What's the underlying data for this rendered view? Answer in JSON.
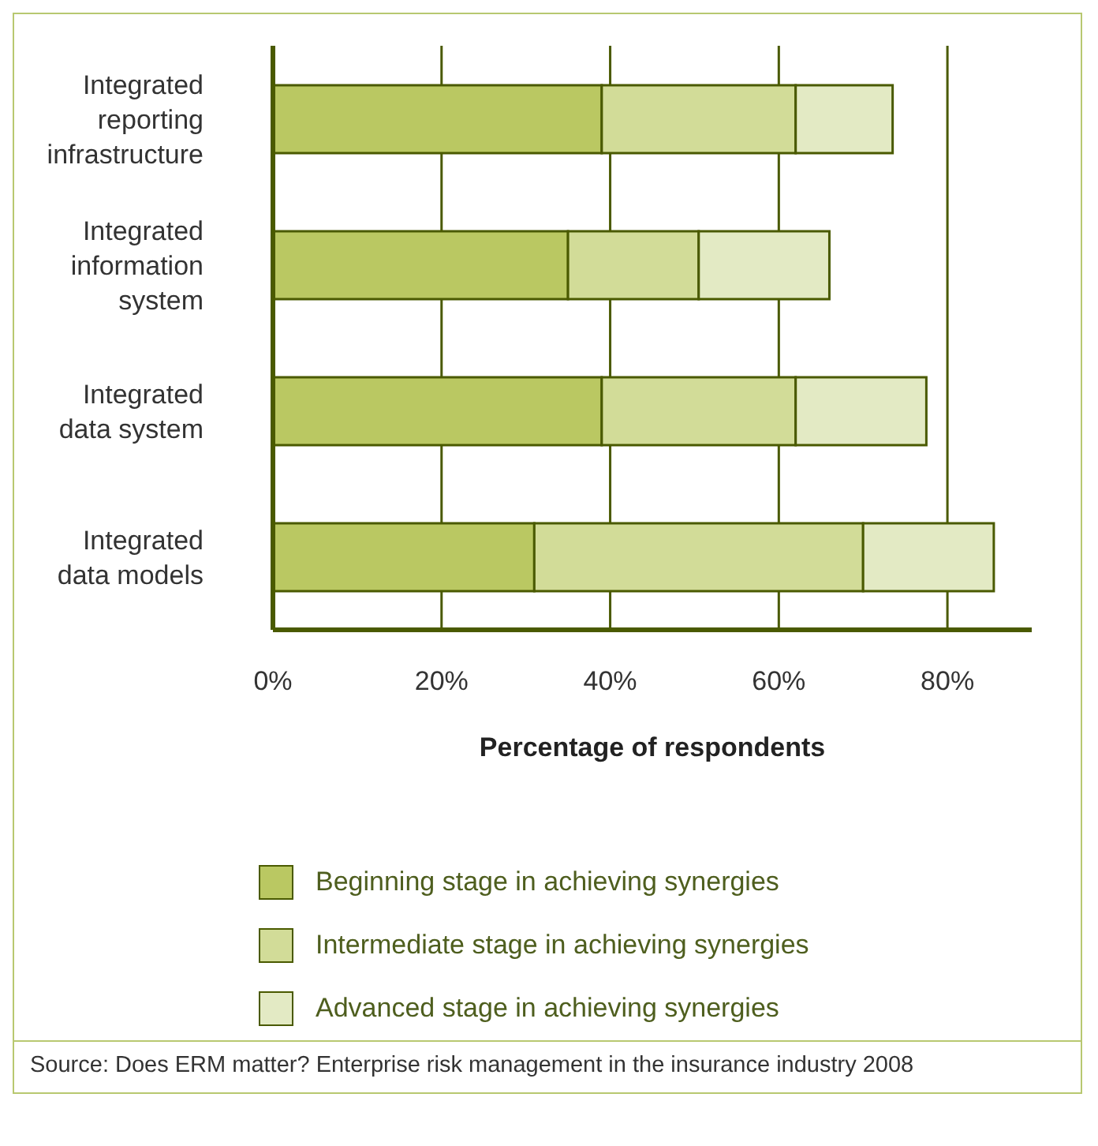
{
  "chart_data": {
    "type": "bar",
    "orientation": "horizontal",
    "stacked": true,
    "categories": [
      "Integrated reporting infrastructure",
      "Integrated information system",
      "Integrated data system",
      "Integrated data models"
    ],
    "series": [
      {
        "name": "Beginning stage in achieving synergies",
        "color": "#bac862",
        "values": [
          39,
          35,
          39,
          31
        ]
      },
      {
        "name": "Intermediate stage in achieving synergies",
        "color": "#d2dc98",
        "values": [
          23,
          15.5,
          23,
          39
        ]
      },
      {
        "name": "Advanced stage in achieving synergies",
        "color": "#e3eac4",
        "values": [
          11.5,
          15.5,
          15.5,
          15.5
        ]
      }
    ],
    "xlim": [
      0,
      90
    ],
    "xticks": [
      {
        "value": 0,
        "label": "0%"
      },
      {
        "value": 20,
        "label": "20%"
      },
      {
        "value": 40,
        "label": "40%"
      },
      {
        "value": 60,
        "label": "60%"
      },
      {
        "value": 80,
        "label": "80%"
      }
    ],
    "xlabel": "Percentage of respondents",
    "grid": "x",
    "legend": "bottom",
    "annotations": [
      "Source: Does ERM matter? Enterprise risk management in the insurance industry 2008"
    ]
  }
}
